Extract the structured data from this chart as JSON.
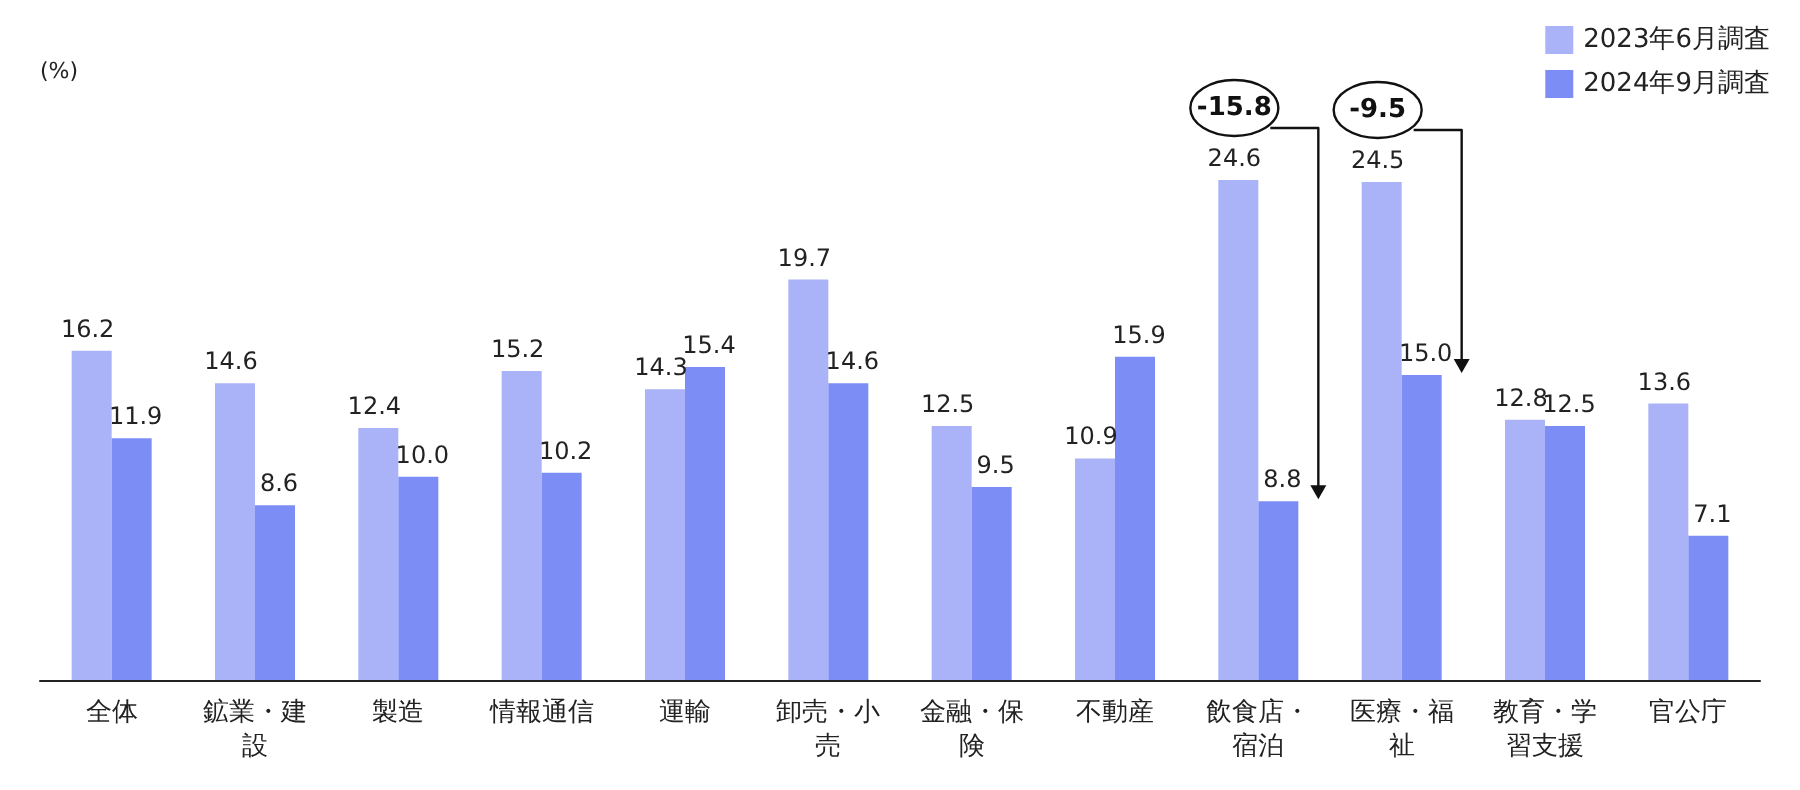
{
  "chart_data": {
    "type": "bar",
    "ylabel": "(%)",
    "categories": [
      "全体",
      "鉱業・建設",
      "製造",
      "情報通信",
      "運輸",
      "卸売・小売",
      "金融・保険",
      "不動産",
      "飲食店・宿泊",
      "医療・福祉",
      "教育・学習支援",
      "官公庁"
    ],
    "series": [
      {
        "name": "2023年6月調査",
        "color": "#aab3f7",
        "values": [
          16.2,
          14.6,
          12.4,
          15.2,
          14.3,
          19.7,
          12.5,
          10.9,
          24.6,
          24.5,
          12.8,
          13.6
        ],
        "value_labels": [
          "16.2",
          "14.6",
          "12.4",
          "15.2",
          "14.3",
          "19.7",
          "12.5",
          "10.9",
          "24.6",
          "24.5",
          "12.8",
          "13.6"
        ]
      },
      {
        "name": "2024年9月調査",
        "color": "#7c8ef6",
        "values": [
          11.9,
          8.6,
          10.0,
          10.2,
          15.4,
          14.6,
          9.5,
          15.9,
          8.8,
          15.0,
          12.5,
          7.1
        ],
        "value_labels": [
          "11.9",
          "8.6",
          "10.0",
          "10.2",
          "15.4",
          "14.6",
          "9.5",
          "15.9",
          "8.8",
          "15.0",
          "12.5",
          "7.1"
        ]
      }
    ],
    "legend": "top right",
    "grid": false,
    "annotations": [
      {
        "text": "-15.8",
        "x": "飲食店・宿泊",
        "y": 24.6
      },
      {
        "text": "-9.5",
        "x": "医療・福祉",
        "y": 24.5
      }
    ]
  }
}
